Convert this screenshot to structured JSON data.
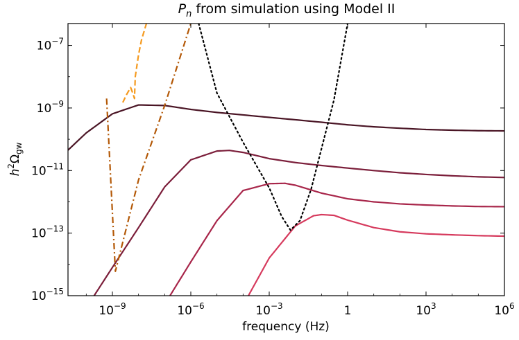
{
  "chart_data": {
    "type": "line",
    "title_var": "P",
    "title_sub": "n",
    "title_rest": " from simulation using Model II",
    "xlabel": "frequency (Hz)",
    "ylabel_base": "h",
    "ylabel_sup": "2",
    "ylabel_sym": "Ω",
    "ylabel_sub": "gw",
    "xscale": "log",
    "yscale": "log",
    "xlim": [
      2e-11,
      1000000.0
    ],
    "ylim": [
      1e-15,
      5e-07
    ],
    "grid": false,
    "legend": "none",
    "x_ticks": [
      {
        "value": 1e-09,
        "base": "10",
        "exp": "−9"
      },
      {
        "value": 1e-06,
        "base": "10",
        "exp": "−6"
      },
      {
        "value": 0.001,
        "base": "10",
        "exp": "−3"
      },
      {
        "value": 1,
        "base": "1",
        "exp": ""
      },
      {
        "value": 1000.0,
        "base": "10",
        "exp": "3"
      },
      {
        "value": 1000000.0,
        "base": "10",
        "exp": "6"
      }
    ],
    "y_ticks": [
      {
        "value": 1e-07,
        "base": "10",
        "exp": "−7"
      },
      {
        "value": 1e-09,
        "base": "10",
        "exp": "−9"
      },
      {
        "value": 1e-11,
        "base": "10",
        "exp": "−11"
      },
      {
        "value": 1e-13,
        "base": "10",
        "exp": "−13"
      },
      {
        "value": 1e-15,
        "base": "10",
        "exp": "−15"
      }
    ],
    "series": [
      {
        "style": "solid",
        "color": "#4a1525",
        "x": [
          2e-11,
          1e-10,
          1e-09,
          1e-08,
          1e-07,
          1e-06,
          1e-05,
          0.0001,
          0.001,
          0.01,
          0.1,
          1,
          10,
          100,
          1000.0,
          10000.0,
          100000.0,
          1000000.0
        ],
        "y": [
          4.5e-11,
          1.6e-10,
          6.5e-10,
          1.25e-09,
          1.2e-09,
          9e-10,
          7.2e-10,
          6e-10,
          5e-10,
          4.2e-10,
          3.5e-10,
          2.9e-10,
          2.5e-10,
          2.25e-10,
          2.05e-10,
          1.95e-10,
          1.88e-10,
          1.85e-10
        ]
      },
      {
        "style": "solid",
        "color": "#7b1e3a",
        "x": [
          2e-10,
          1e-09,
          1e-08,
          1e-07,
          1e-06,
          1e-05,
          3e-05,
          0.0001,
          0.001,
          0.01,
          0.1,
          1,
          10,
          100,
          1000.0,
          10000.0,
          100000.0,
          1000000.0
        ],
        "y": [
          1e-15,
          8e-15,
          1.5e-13,
          3e-12,
          2.2e-11,
          4.2e-11,
          4.4e-11,
          3.8e-11,
          2.4e-11,
          1.8e-11,
          1.45e-11,
          1.2e-11,
          1e-11,
          8.5e-12,
          7.5e-12,
          6.8e-12,
          6.3e-12,
          6e-12
        ]
      },
      {
        "style": "solid",
        "color": "#a8264a",
        "x": [
          1.6e-07,
          1e-06,
          1e-05,
          0.0001,
          0.001,
          0.004,
          0.01,
          0.1,
          1,
          10,
          100,
          1000.0,
          10000.0,
          100000.0,
          1000000.0
        ],
        "y": [
          1e-15,
          1.2e-14,
          2.5e-13,
          2.3e-12,
          3.8e-12,
          3.9e-12,
          3.4e-12,
          1.9e-12,
          1.25e-12,
          1e-12,
          8.6e-13,
          7.9e-13,
          7.4e-13,
          7.1e-13,
          7e-13
        ]
      },
      {
        "style": "solid",
        "color": "#d63a5d",
        "x": [
          0.00016,
          0.001,
          0.01,
          0.05,
          0.1,
          0.3,
          1,
          10,
          100,
          1000.0,
          10000.0,
          100000.0,
          1000000.0
        ],
        "y": [
          1e-15,
          1.6e-14,
          1.7e-13,
          3.6e-13,
          3.9e-13,
          3.7e-13,
          2.6e-13,
          1.5e-13,
          1.1e-13,
          9.5e-14,
          8.8e-14,
          8.3e-14,
          8e-14
        ]
      },
      {
        "style": "dotted",
        "color": "#000000",
        "x": [
          2e-06,
          1e-05,
          0.0001,
          0.001,
          0.003,
          0.0065,
          0.015,
          0.04,
          0.1,
          0.3,
          1
        ],
        "y": [
          5e-07,
          3e-09,
          8e-11,
          2.8e-12,
          3.4e-13,
          1.25e-13,
          2.5e-13,
          2.5e-12,
          5e-11,
          1.8e-09,
          5e-07
        ]
      },
      {
        "style": "dashdot",
        "color": "#b35806",
        "x": [
          6e-10,
          1.3e-09,
          1e-08,
          1e-07,
          1e-06
        ],
        "y": [
          2e-09,
          6e-15,
          5e-12,
          1.2e-09,
          5e-07
        ]
      },
      {
        "style": "dashed",
        "color": "#f59a1f",
        "x": [
          2.5e-09,
          3.5e-09,
          5e-09,
          6e-09,
          7e-09,
          7.5e-09,
          1e-08,
          1.3e-08,
          2e-08
        ],
        "y": [
          1.5e-09,
          2.7e-09,
          4.5e-09,
          3e-09,
          2e-09,
          1e-08,
          5e-08,
          1.5e-07,
          5e-07
        ]
      }
    ]
  }
}
